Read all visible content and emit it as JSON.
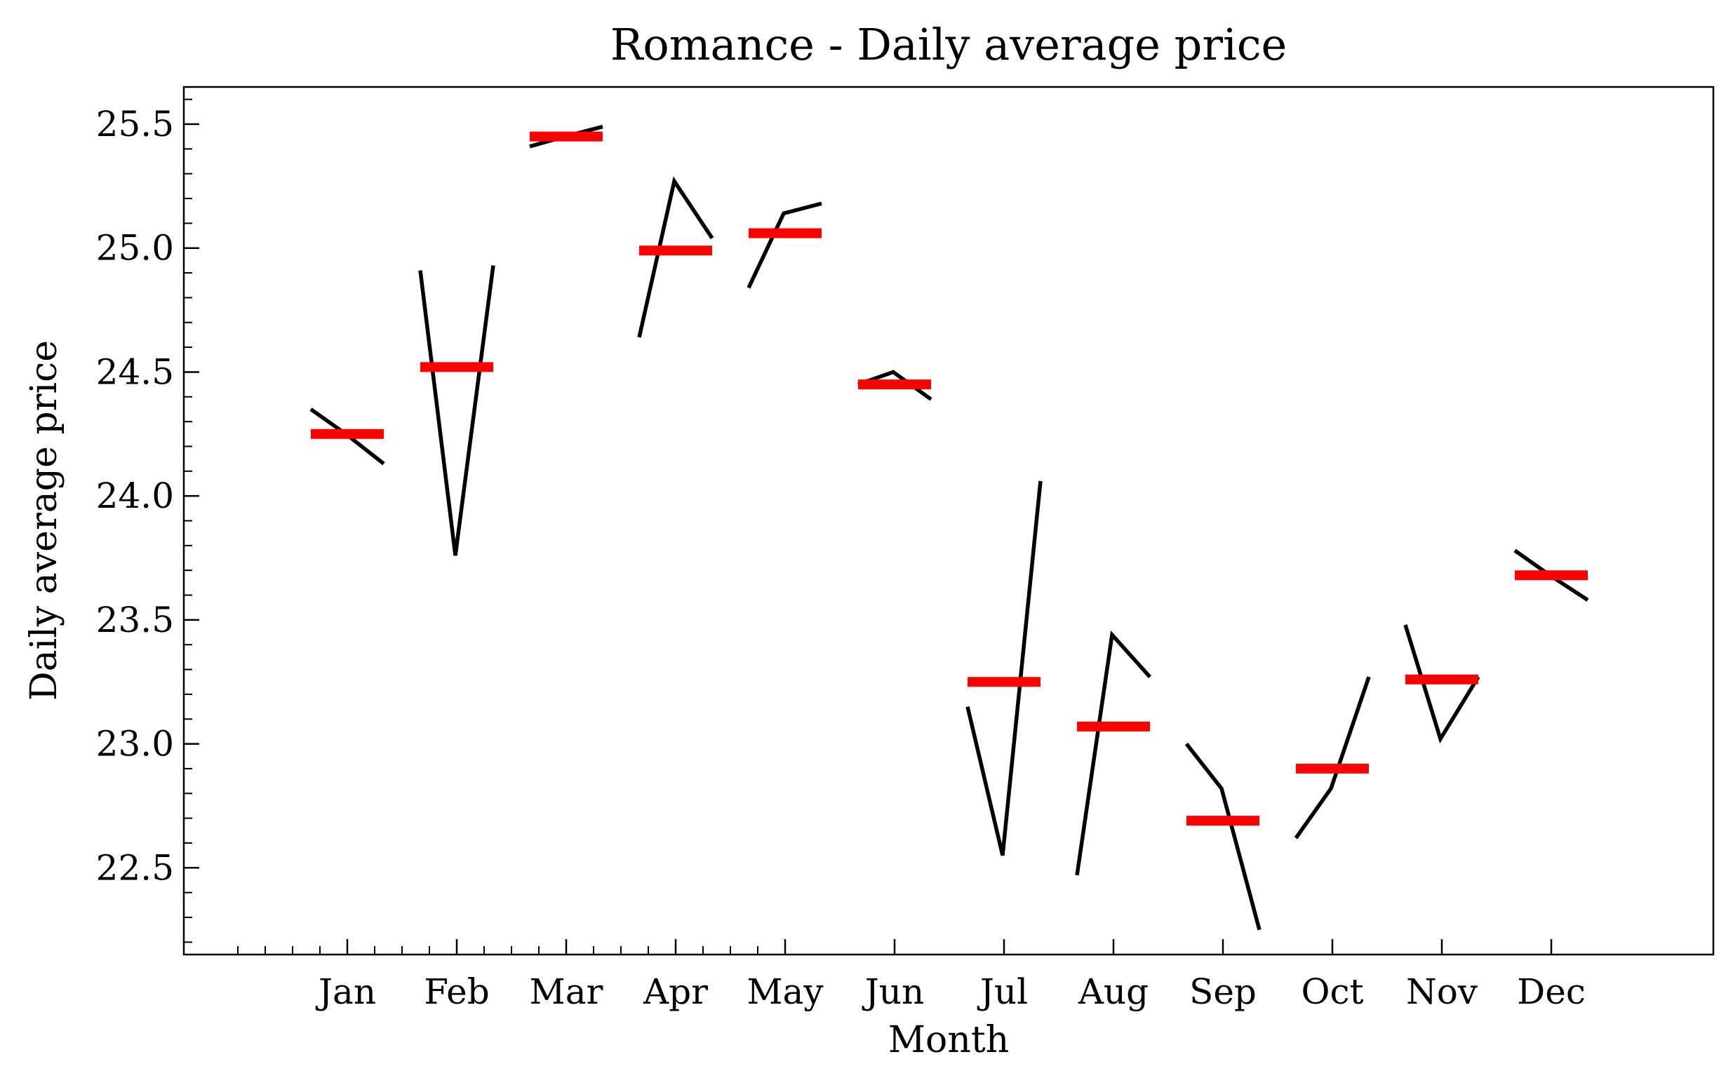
{
  "chart_data": {
    "type": "line",
    "title": "Romance - Daily average price",
    "xlabel": "Month",
    "ylabel": "Daily average price",
    "categories": [
      "Jan",
      "Feb",
      "Mar",
      "Apr",
      "May",
      "Jun",
      "Jul",
      "Aug",
      "Sep",
      "Oct",
      "Nov",
      "Dec"
    ],
    "yticks": [
      "22.5",
      "23.0",
      "23.5",
      "24.0",
      "24.5",
      "25.0",
      "25.5"
    ],
    "ylim": [
      22.15,
      25.65
    ],
    "grid": false,
    "legend": "none",
    "series": [
      {
        "values": [
          [
            24.35,
            24.25,
            24.13
          ],
          [
            24.91,
            23.76,
            24.93
          ],
          [
            25.41,
            25.45,
            25.49
          ],
          [
            24.64,
            25.27,
            25.04
          ],
          [
            24.84,
            25.14,
            25.18
          ],
          [
            24.45,
            24.5,
            24.39
          ],
          [
            23.15,
            22.55,
            24.06
          ],
          [
            22.47,
            23.44,
            23.27
          ],
          [
            23.0,
            22.82,
            22.25
          ],
          [
            22.62,
            22.82,
            23.27
          ],
          [
            23.48,
            23.02,
            23.27
          ],
          [
            23.78,
            23.68,
            23.58
          ]
        ]
      },
      {
        "values": [
          24.25,
          24.52,
          25.45,
          24.99,
          25.06,
          24.45,
          23.25,
          23.07,
          22.69,
          22.9,
          23.26,
          23.68
        ]
      }
    ],
    "colors": {
      "month_trend": "#000000",
      "month_mean": "#ff0000"
    }
  }
}
